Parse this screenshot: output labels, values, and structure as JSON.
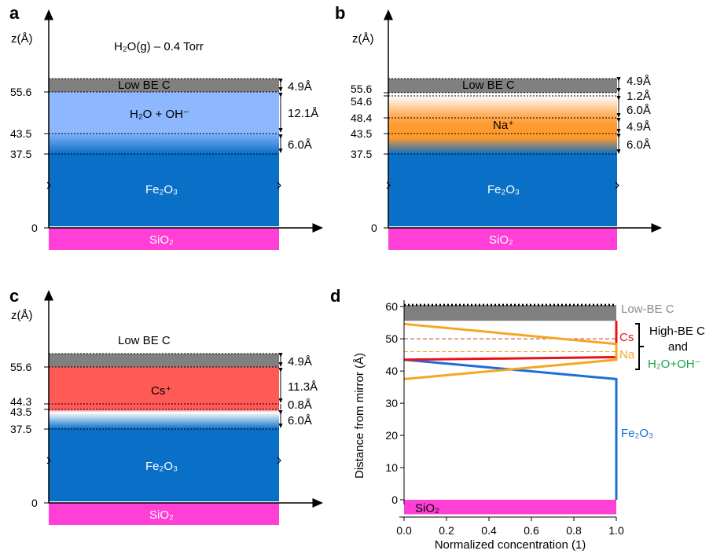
{
  "colors": {
    "fe2o3": "#0a6fc7",
    "sio2": "#ff3fd6",
    "lowbec": "#808080",
    "water": "#8db8ff",
    "sodium": "#ff9a2e",
    "cesium": "#ff5a55",
    "cs_line": "#e8111a",
    "na_line": "#f5a623",
    "green": "#1aa34a",
    "lowbe_text": "#8c8c8c"
  },
  "panels": [
    {
      "id": "a",
      "letter": "a",
      "z_axis": "z(Å)",
      "condition": "H₂O(g) – 0.4 Torr",
      "ticks": [
        "55.6",
        "43.5",
        "37.5",
        "0"
      ],
      "layers": {
        "low_be_c": "Low BE C",
        "fe2o3": "Fe₂O₃",
        "sio2": "SiO₂",
        "ion": "H₂O + OH⁻"
      },
      "thicknesses": [
        "4.9Å",
        "12.1Å",
        "6.0Å"
      ]
    },
    {
      "id": "b",
      "letter": "b",
      "z_axis": "z(Å)",
      "ticks": [
        "55.6",
        "54.6",
        "48.4",
        "43.5",
        "37.5",
        "0"
      ],
      "layers": {
        "low_be_c": "Low BE C",
        "fe2o3": "Fe₂O₃",
        "sio2": "SiO₂",
        "ion": "Na⁺"
      },
      "thicknesses": [
        "4.9Å",
        "1.2Å",
        "6.0Å",
        "4.9Å",
        "6.0Å"
      ]
    },
    {
      "id": "c",
      "letter": "c",
      "z_axis": "z(Å)",
      "ticks": [
        "55.6",
        "44.3",
        "43.5",
        "37.5",
        "0"
      ],
      "layers": {
        "low_be_c": "Low BE C",
        "fe2o3": "Fe₂O₃",
        "sio2": "SiO₂",
        "ion": "Cs⁺"
      },
      "thicknesses": [
        "4.9Å",
        "11.3Å",
        "0.8Å",
        "6.0Å"
      ]
    }
  ],
  "chart_data": {
    "type": "line",
    "letter": "d",
    "xlabel": "Normalized concentration (1)",
    "ylabel": "Distance from mirror (Å)",
    "xlim": [
      0,
      1
    ],
    "ylim": [
      0,
      62
    ],
    "xticks": [
      "0.0",
      "0.2",
      "0.4",
      "0.6",
      "0.8",
      "1.0"
    ],
    "yticks": [
      "0",
      "10",
      "20",
      "30",
      "40",
      "50",
      "60"
    ],
    "series": [
      {
        "name": "Fe₂O₃",
        "color": "#1a6fd9",
        "x": [
          0,
          1,
          1
        ],
        "y": [
          43.5,
          37.5,
          0
        ]
      },
      {
        "name": "Cs",
        "color": "#e8111a",
        "x": [
          0,
          1,
          1
        ],
        "y": [
          43.5,
          44.3,
          55.6
        ]
      },
      {
        "name": "Na",
        "color": "#f5a623",
        "x": [
          0,
          1,
          1,
          0
        ],
        "y": [
          37.5,
          43.5,
          48.4,
          54.6
        ]
      }
    ],
    "reference_lines": [
      {
        "y": 60.5,
        "color": "#000000",
        "style": "dotted"
      },
      {
        "y": 50.0,
        "color": "#c0392b",
        "style": "dashed"
      },
      {
        "y": 46.0,
        "color": "#f5a623",
        "style": "dashed"
      }
    ],
    "bands": [
      {
        "label": "",
        "y0": 55.6,
        "y1": 60.5,
        "color": "#808080"
      },
      {
        "label": "SiO₂",
        "y0": -4.5,
        "y1": 0,
        "color": "#ff3fd6"
      }
    ],
    "annotations": {
      "low_be": "Low-BE C",
      "cs": "Cs",
      "na": "Na",
      "high_be_1": "High-BE C",
      "high_be_2": "and",
      "water": "H₂O+OH⁻",
      "fe2o3": "Fe₂O₃"
    }
  }
}
